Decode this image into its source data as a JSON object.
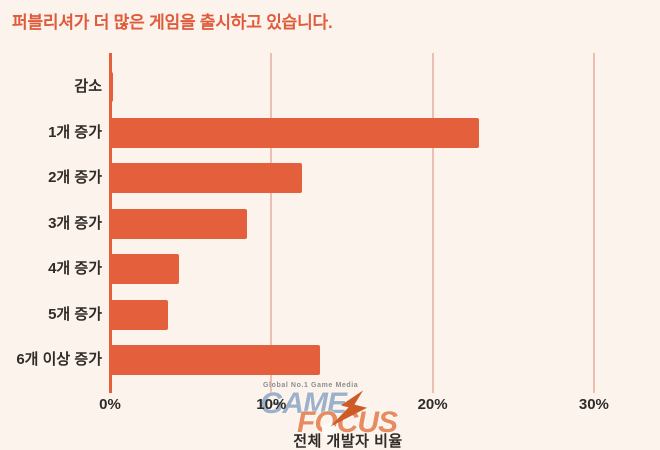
{
  "page": {
    "title": "퍼블리셔가 더 많은 게임을 출시하고 있습니다."
  },
  "chart_data": {
    "type": "bar",
    "orientation": "horizontal",
    "title": "퍼블리셔가 더 많은 게임을 출시하고 있습니다.",
    "categories": [
      "감소",
      "1개 증가",
      "2개 증가",
      "3개 증가",
      "4개 증가",
      "5개 증가",
      "6개 이상 증가"
    ],
    "values": [
      0.3,
      23,
      12,
      8.6,
      4.4,
      3.7,
      13.1
    ],
    "unit": "%",
    "xlabel": "전체 개발자 비율",
    "ylabel": "",
    "xlim": [
      0,
      33
    ],
    "x_ticks": [
      0,
      10,
      20,
      30
    ],
    "x_tick_labels": [
      "0%",
      "10%",
      "20%",
      "30%"
    ],
    "grid": true,
    "legend": "none",
    "bar_color": "#E4603C",
    "grid_color": "#EBBFB1",
    "axis_color": "#E4603C",
    "background_color": "#FCF3EC",
    "title_color": "#DF5B3B",
    "label_color": "#2F2B28"
  },
  "watermark": {
    "tagline": "Global No.1 Game Media",
    "line1": "GAME",
    "line2": "FOCUS",
    "game_color": "#9DB2CA",
    "focus_color": "#E78B60",
    "bolt_color": "#CC5B28"
  }
}
